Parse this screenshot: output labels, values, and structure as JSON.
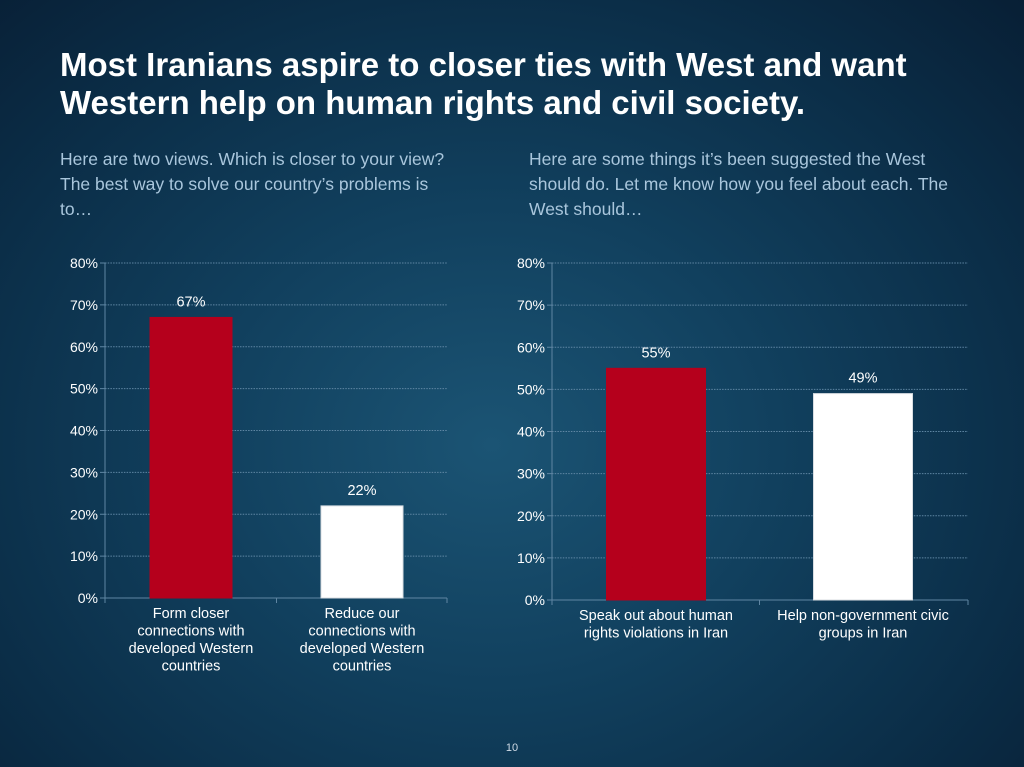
{
  "slide": {
    "title": "Most Iranians aspire to closer ties with West and want Western help on human rights and civil society.",
    "page_number": "10"
  },
  "subtitles": {
    "left": "Here are two views.  Which is closer to your view? The best way to solve our country’s problems is to…",
    "right": "Here are some things it’s been suggested the West should do. Let me know how you feel about each. The West should…"
  },
  "colors": {
    "red": "#b5001c",
    "white": "#ffffff",
    "grid": "#5f86a3"
  },
  "chart_data": [
    {
      "type": "bar",
      "title": "",
      "xlabel": "",
      "ylabel": "",
      "ylim": [
        0,
        80
      ],
      "yticks": [
        "0%",
        "10%",
        "20%",
        "30%",
        "40%",
        "50%",
        "60%",
        "70%",
        "80%"
      ],
      "grid": true,
      "categories": [
        [
          "Form closer",
          "connections with",
          "developed Western",
          "countries"
        ],
        [
          "Reduce our",
          "connections with",
          "developed Western",
          "countries"
        ]
      ],
      "values": [
        67,
        22
      ],
      "data_labels": [
        "67%",
        "22%"
      ],
      "bar_colors": [
        "#b5001c",
        "#ffffff"
      ]
    },
    {
      "type": "bar",
      "title": "",
      "xlabel": "",
      "ylabel": "",
      "ylim": [
        0,
        80
      ],
      "yticks": [
        "0%",
        "10%",
        "20%",
        "30%",
        "40%",
        "50%",
        "60%",
        "70%",
        "80%"
      ],
      "grid": true,
      "categories": [
        [
          "Speak out about human",
          "rights violations in Iran"
        ],
        [
          "Help non-government civic",
          "groups in Iran"
        ]
      ],
      "values": [
        55,
        49
      ],
      "data_labels": [
        "55%",
        "49%"
      ],
      "bar_colors": [
        "#b5001c",
        "#ffffff"
      ]
    }
  ]
}
